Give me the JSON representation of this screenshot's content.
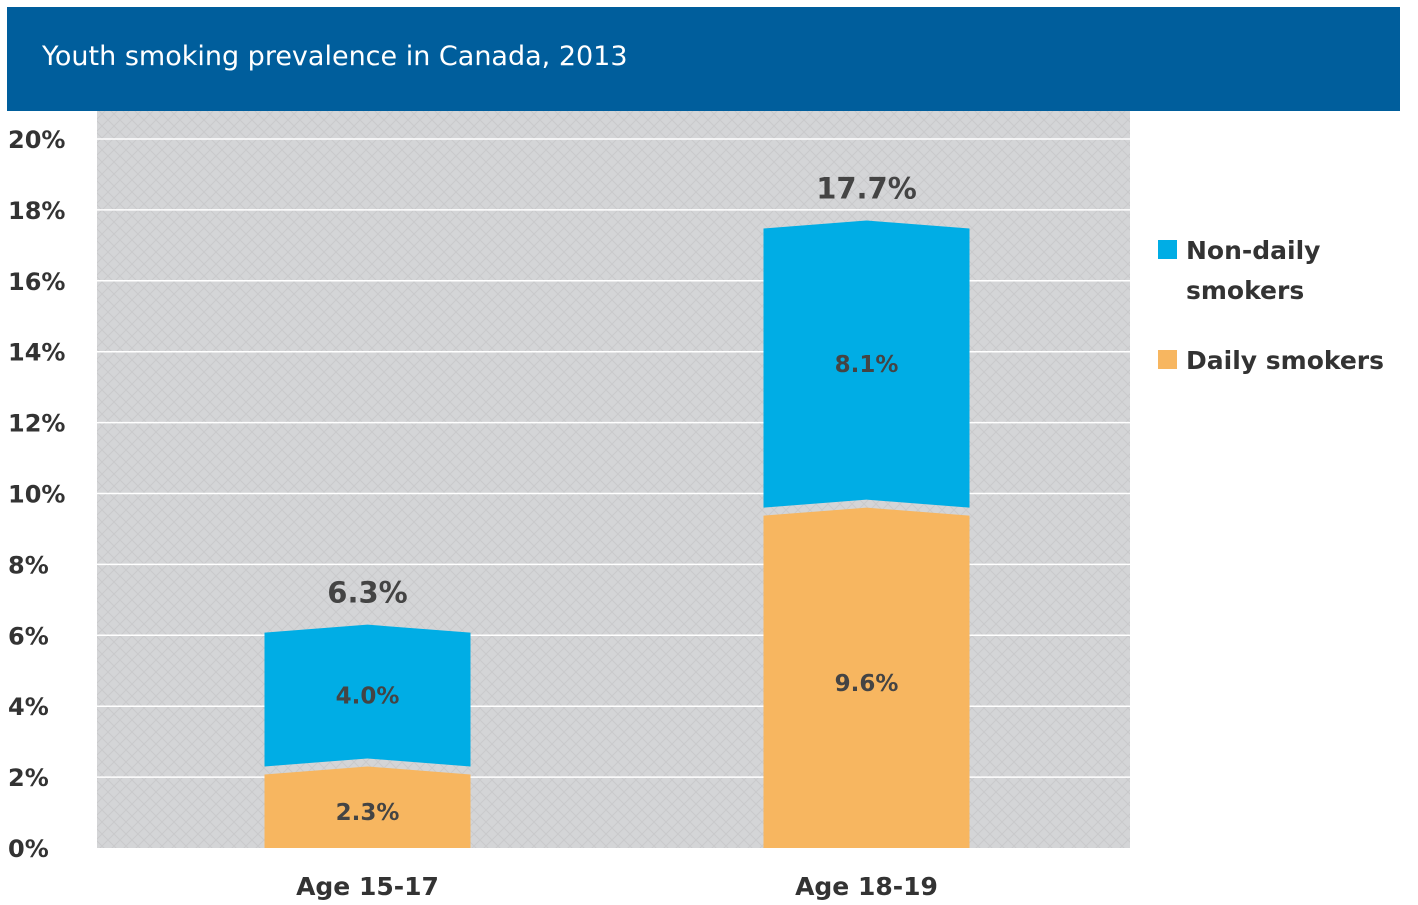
{
  "colors": {
    "header_bg": "#005e9c",
    "non_daily": "#00ade5",
    "daily": "#f7b660",
    "plot_bg": "#d4d5d7"
  },
  "chart_data": {
    "type": "bar",
    "stacked": true,
    "title": "Youth smoking prevalence in Canada, 2013",
    "categories": [
      "Age 15-17",
      "Age 18-19"
    ],
    "series": [
      {
        "name": "Daily smokers",
        "values": [
          2.3,
          9.6
        ],
        "labels": [
          "2.3%",
          "9.6%"
        ],
        "color": "#f7b660"
      },
      {
        "name": "Non-daily smokers",
        "values": [
          4.0,
          8.1
        ],
        "labels": [
          "4.0%",
          "8.1%"
        ],
        "color": "#00ade5"
      }
    ],
    "totals": [
      6.3,
      17.7
    ],
    "total_labels": [
      "6.3%",
      "17.7%"
    ],
    "ylim": [
      0,
      20
    ],
    "yticks": [
      "0%",
      "2%",
      "4%",
      "6%",
      "8%",
      "10%",
      "12%",
      "14%",
      "16%",
      "18%",
      "20%"
    ],
    "grid": true,
    "legend": {
      "position": "right",
      "items": [
        {
          "lines": [
            "Non-daily",
            "smokers"
          ],
          "color": "#00ade5"
        },
        {
          "lines": [
            "Daily smokers"
          ],
          "color": "#f7b660"
        }
      ]
    }
  }
}
